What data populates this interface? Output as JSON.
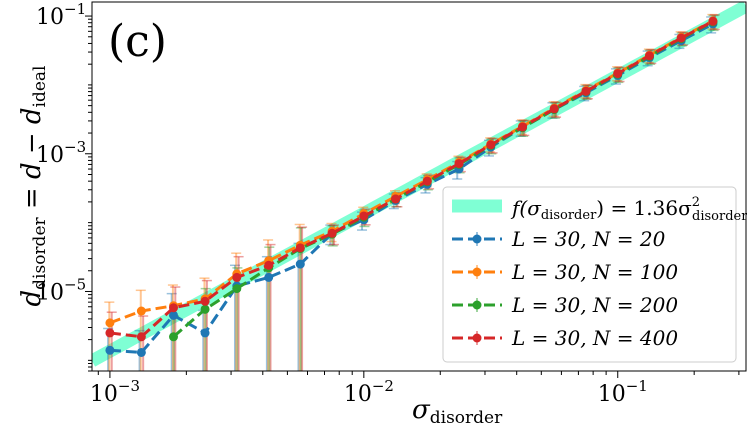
{
  "chart_data": {
    "type": "line",
    "panel_label": "(c)",
    "xscale": "log",
    "yscale": "log",
    "xlim": [
      0.00085,
      0.32
    ],
    "ylim": [
      7e-07,
      0.16
    ],
    "xlabel": {
      "base": "σ",
      "sub": "disorder"
    },
    "ylabel": {
      "base": "d",
      "sub": "disorder",
      "mid": " = d − d",
      "sub2": "ideal"
    },
    "x_ticks": [
      {
        "value": 0.001,
        "base": "10",
        "exp": "−3"
      },
      {
        "value": 0.01,
        "base": "10",
        "exp": "−2"
      },
      {
        "value": 0.1,
        "base": "10",
        "exp": "−1"
      }
    ],
    "y_ticks": [
      {
        "value": 1e-05,
        "base": "10",
        "exp": "−5"
      },
      {
        "value": 0.001,
        "base": "10",
        "exp": "−3"
      },
      {
        "value": 0.1,
        "base": "10",
        "exp": "−1"
      }
    ],
    "x": [
      0.001,
      0.00133,
      0.00178,
      0.00237,
      0.00316,
      0.00422,
      0.00562,
      0.0075,
      0.01,
      0.01334,
      0.01778,
      0.02371,
      0.03162,
      0.04217,
      0.05623,
      0.07499,
      0.1,
      0.13335,
      0.17783,
      0.23714
    ],
    "fit": {
      "label_main": "f(σ",
      "label_sub": "disorder",
      "label_mid": ") = 1.36σ",
      "label_sup": "2",
      "label_sub2": "disorder",
      "coef": 1.36,
      "power": 2,
      "color": "#7fffd4"
    },
    "series": [
      {
        "name": "L = 30, N = 20",
        "color": "#1f77b4",
        "values": [
          1.4e-06,
          1.3e-06,
          4.5e-06,
          2.5e-06,
          1.2e-05,
          1.6e-05,
          2.5e-05,
          7e-05,
          0.00011,
          0.00021,
          0.00036,
          0.0006,
          0.00125,
          0.0024,
          0.0044,
          0.0077,
          0.0137,
          0.025,
          0.044,
          0.077
        ],
        "err_hi": [
          1.5e-06,
          1.4e-06,
          4.8e-06,
          2.8e-06,
          1.2e-05,
          1.6e-05,
          2.5e-05,
          2.2e-05,
          3.2e-05,
          5e-05,
          9e-05,
          0.00017,
          0.00032,
          0.0006,
          0.0011,
          0.0018,
          0.0034,
          0.006,
          0.01,
          0.02
        ]
      },
      {
        "name": "L = 30, N = 100",
        "color": "#ff7f0e",
        "values": [
          3.5e-06,
          5.2e-06,
          6.2e-06,
          7.8e-06,
          1.8e-05,
          2.8e-05,
          4.7e-05,
          7.5e-05,
          0.000135,
          0.00024,
          0.00042,
          0.00075,
          0.00138,
          0.0025,
          0.0046,
          0.0083,
          0.0149,
          0.027,
          0.049,
          0.085
        ],
        "err_hi": [
          3.5e-06,
          5.2e-06,
          6.2e-06,
          7.8e-06,
          1.8e-05,
          2.8e-05,
          4.7e-05,
          2.2e-05,
          3.2e-05,
          5e-05,
          9e-05,
          0.00017,
          0.00032,
          0.0006,
          0.0011,
          0.0018,
          0.0034,
          0.006,
          0.01,
          0.02
        ]
      },
      {
        "name": "L = 30, N = 200",
        "color": "#2ca02c",
        "values": [
          null,
          null,
          2.2e-06,
          5.5e-06,
          1.1e-05,
          2.2e-05,
          4.2e-05,
          6.8e-05,
          0.00012,
          0.00022,
          0.00039,
          0.0007,
          0.00132,
          0.0024,
          0.0044,
          0.008,
          0.0143,
          0.026,
          0.047,
          0.082
        ],
        "err_hi": [
          null,
          null,
          2.2e-06,
          5.5e-06,
          1.1e-05,
          2.2e-05,
          4.2e-05,
          2.2e-05,
          3.2e-05,
          5e-05,
          9e-05,
          0.00017,
          0.00032,
          0.0006,
          0.0011,
          0.0018,
          0.0034,
          0.006,
          0.01,
          0.02
        ]
      },
      {
        "name": "L = 30, N = 400",
        "color": "#d62728",
        "values": [
          2.5e-06,
          2.2e-06,
          5.8e-06,
          7.2e-06,
          1.6e-05,
          2.4e-05,
          4.3e-05,
          7e-05,
          0.000125,
          0.00022,
          0.0004,
          0.00072,
          0.00135,
          0.00245,
          0.0045,
          0.0081,
          0.0146,
          0.0265,
          0.048,
          0.084
        ],
        "err_hi": [
          2.5e-06,
          2.2e-06,
          5.8e-06,
          7.2e-06,
          1.6e-05,
          2.4e-05,
          4.3e-05,
          2.2e-05,
          3.2e-05,
          5e-05,
          9e-05,
          0.00017,
          0.00032,
          0.0006,
          0.0011,
          0.0018,
          0.0034,
          0.006,
          0.01,
          0.02
        ]
      }
    ],
    "legend_position": "lower-right",
    "grid": false
  }
}
